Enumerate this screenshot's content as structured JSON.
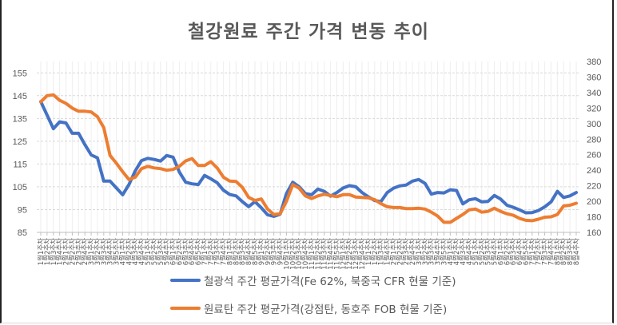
{
  "chart_data": {
    "type": "line",
    "title": "철강원료 주간 가격 변동 추이",
    "left_axis": {
      "ylim": [
        85,
        160
      ],
      "ticks": [
        85,
        95,
        105,
        115,
        125,
        135,
        145,
        155
      ]
    },
    "right_axis": {
      "ylim": [
        160,
        380
      ],
      "ticks": [
        160,
        180,
        200,
        220,
        240,
        260,
        280,
        300,
        320,
        340,
        360,
        380
      ]
    },
    "grid": true,
    "legend_position": "bottom",
    "weeks_per_month": [
      [
        1,
        4
      ],
      [
        2,
        4
      ],
      [
        3,
        5
      ],
      [
        4,
        4
      ],
      [
        5,
        4
      ],
      [
        6,
        5
      ],
      [
        7,
        4
      ],
      [
        8,
        5
      ],
      [
        9,
        4
      ],
      [
        10,
        4
      ],
      [
        11,
        5
      ],
      [
        12,
        4
      ],
      [
        1,
        4
      ],
      [
        2,
        4
      ],
      [
        3,
        5
      ],
      [
        4,
        4
      ],
      [
        5,
        4
      ],
      [
        6,
        5
      ],
      [
        7,
        4
      ],
      [
        8,
        4
      ]
    ],
    "series": [
      {
        "name": "철광석 주간 평균가격(Fe 62%, 북중국 CFR 현물 기준)",
        "axis": "left",
        "color": "#4472C4",
        "values": [
          142.4,
          136.5,
          130.5,
          133.5,
          133,
          128.5,
          128.5,
          123.5,
          119,
          117.7,
          107.5,
          107.5,
          104.5,
          101.5,
          106,
          112,
          116.5,
          117.5,
          117,
          116.3,
          118.7,
          118,
          111.5,
          107,
          106.3,
          106,
          110,
          108.5,
          106.8,
          103.5,
          101.6,
          101,
          98.5,
          96.3,
          98.5,
          95.8,
          92.7,
          92,
          93,
          102,
          107,
          105,
          102,
          101.5,
          104,
          103,
          100.9,
          102.5,
          104.5,
          105.5,
          105,
          102.5,
          100.6,
          99,
          98.5,
          102.5,
          104.4,
          105.4,
          105.8,
          107.5,
          108.2,
          106.5,
          101.8,
          102.5,
          102.3,
          103.7,
          103.4,
          97.5,
          99.3,
          99.8,
          98.4,
          98.6,
          101.2,
          99.6,
          96.9,
          96,
          94.9,
          93.6,
          93.7,
          94.6,
          96.2,
          98.4,
          103,
          100.3,
          101,
          102.5
        ]
      },
      {
        "name": "원료탄 주간 평균가격(강점탄, 동호주 FOB 현물 기준)",
        "axis": "right",
        "color": "#ED7D31",
        "values": [
          328,
          336,
          337,
          330,
          326,
          320,
          316,
          316,
          315,
          309,
          295,
          259,
          249,
          238,
          228,
          231,
          242,
          245,
          243,
          242,
          240,
          241,
          245,
          252,
          255,
          246,
          246,
          251,
          243,
          231,
          226,
          225.5,
          218,
          205,
          201,
          203,
          190,
          183,
          184,
          200,
          221.5,
          217,
          207,
          203.5,
          207,
          209,
          207.5,
          206,
          208.5,
          208.5,
          205.5,
          205,
          204.5,
          202,
          197,
          193,
          192,
          192,
          190.5,
          190.5,
          191,
          190,
          186,
          181,
          173,
          173,
          178,
          183,
          189,
          190,
          186,
          187,
          191,
          187,
          184,
          182,
          178,
          175.5,
          175,
          177,
          179.5,
          180,
          183,
          194,
          195,
          197.5
        ]
      }
    ]
  }
}
